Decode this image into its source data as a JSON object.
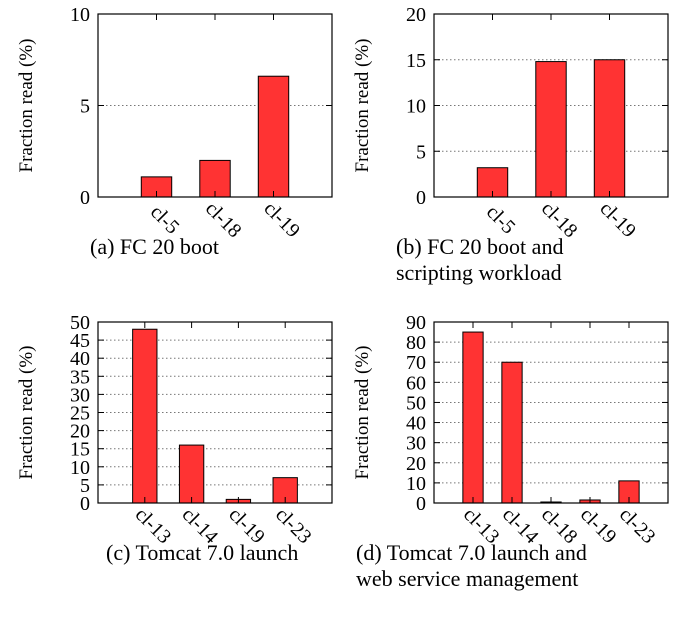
{
  "chart_data": [
    {
      "type": "bar",
      "ylabel": "Fraction read (%)",
      "categories": [
        "cl-5",
        "cl-18",
        "cl-19"
      ],
      "values": [
        1.1,
        2.0,
        6.6
      ],
      "ylim": [
        0,
        10
      ],
      "yticks": [
        "0",
        "5",
        "10"
      ],
      "grid": true,
      "caption_lines": [
        "(a) FC 20 boot"
      ],
      "bar_color": "#ff3333"
    },
    {
      "type": "bar",
      "ylabel": "Fraction read (%)",
      "categories": [
        "cl-5",
        "cl-18",
        "cl-19"
      ],
      "values": [
        3.2,
        14.8,
        15.0
      ],
      "ylim": [
        0,
        20
      ],
      "yticks": [
        "0",
        "5",
        "10",
        "15",
        "20"
      ],
      "grid": true,
      "caption_lines": [
        "(b) FC 20 boot and",
        "scripting workload"
      ],
      "bar_color": "#ff3333"
    },
    {
      "type": "bar",
      "ylabel": "Fraction read (%)",
      "categories": [
        "cl-13",
        "cl-14",
        "cl-19",
        "cl-23"
      ],
      "values": [
        48,
        16,
        1,
        7
      ],
      "ylim": [
        0,
        50
      ],
      "yticks": [
        "0",
        "5",
        "10",
        "15",
        "20",
        "25",
        "30",
        "35",
        "40",
        "45",
        "50"
      ],
      "grid": true,
      "caption_lines": [
        "(c) Tomcat 7.0 launch"
      ],
      "bar_color": "#ff3333"
    },
    {
      "type": "bar",
      "ylabel": "Fraction read (%)",
      "categories": [
        "cl-13",
        "cl-14",
        "cl-18",
        "cl-19",
        "cl-23"
      ],
      "values": [
        85,
        70,
        0.5,
        1.5,
        11
      ],
      "ylim": [
        0,
        90
      ],
      "yticks": [
        "0",
        "10",
        "20",
        "30",
        "40",
        "50",
        "60",
        "70",
        "80",
        "90"
      ],
      "grid": true,
      "caption_lines": [
        "(d) Tomcat 7.0 launch and",
        "web service management"
      ],
      "bar_color": "#ff3333"
    }
  ]
}
